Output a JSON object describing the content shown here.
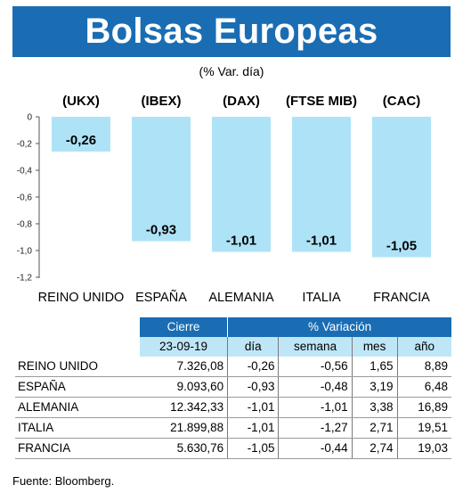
{
  "title": "Bolsas Europeas",
  "subtitle": "(% Var. día)",
  "chart_data": {
    "type": "bar",
    "categories": [
      "REINO UNIDO",
      "ESPAÑA",
      "ALEMANIA",
      "ITALIA",
      "FRANCIA"
    ],
    "tickers": [
      "(UKX)",
      "(IBEX)",
      "(DAX)",
      "(FTSE MIB)",
      "(CAC)"
    ],
    "values": [
      -0.26,
      -0.93,
      -1.01,
      -1.01,
      -1.05
    ],
    "value_labels": [
      "-0,26",
      "-0,93",
      "-1,01",
      "-1,01",
      "-1,05"
    ],
    "ylim": [
      -1.2,
      0
    ],
    "yticks": [
      0,
      -0.2,
      -0.4,
      -0.6,
      -0.8,
      -1.0,
      -1.2
    ],
    "ytick_labels": [
      "0",
      "-0,2",
      "-0,4",
      "-0,6",
      "-0,8",
      "-1,0",
      "-1,2"
    ],
    "bar_color": "#aee3f7",
    "grid": false
  },
  "table": {
    "header": {
      "cierre": "Cierre",
      "date": "23-09-19",
      "variacion": "% Variación",
      "dia": "día",
      "semana": "semana",
      "mes": "mes",
      "ano": "año"
    },
    "rows": [
      {
        "name": "REINO UNIDO",
        "cierre": "7.326,08",
        "dia": "-0,26",
        "semana": "-0,56",
        "mes": "1,65",
        "ano": "8,89"
      },
      {
        "name": "ESPAÑA",
        "cierre": "9.093,60",
        "dia": "-0,93",
        "semana": "-0,48",
        "mes": "3,19",
        "ano": "6,48"
      },
      {
        "name": "ALEMANIA",
        "cierre": "12.342,33",
        "dia": "-1,01",
        "semana": "-1,01",
        "mes": "3,38",
        "ano": "16,89"
      },
      {
        "name": "ITALIA",
        "cierre": "21.899,88",
        "dia": "-1,01",
        "semana": "-1,27",
        "mes": "2,71",
        "ano": "19,51"
      },
      {
        "name": "FRANCIA",
        "cierre": "5.630,76",
        "dia": "-1,05",
        "semana": "-0,44",
        "mes": "2,74",
        "ano": "19,03"
      }
    ]
  },
  "source": "Fuente: Bloomberg.",
  "colors": {
    "brand_blue": "#1a6db3",
    "light_blue": "#bfe6f7"
  }
}
